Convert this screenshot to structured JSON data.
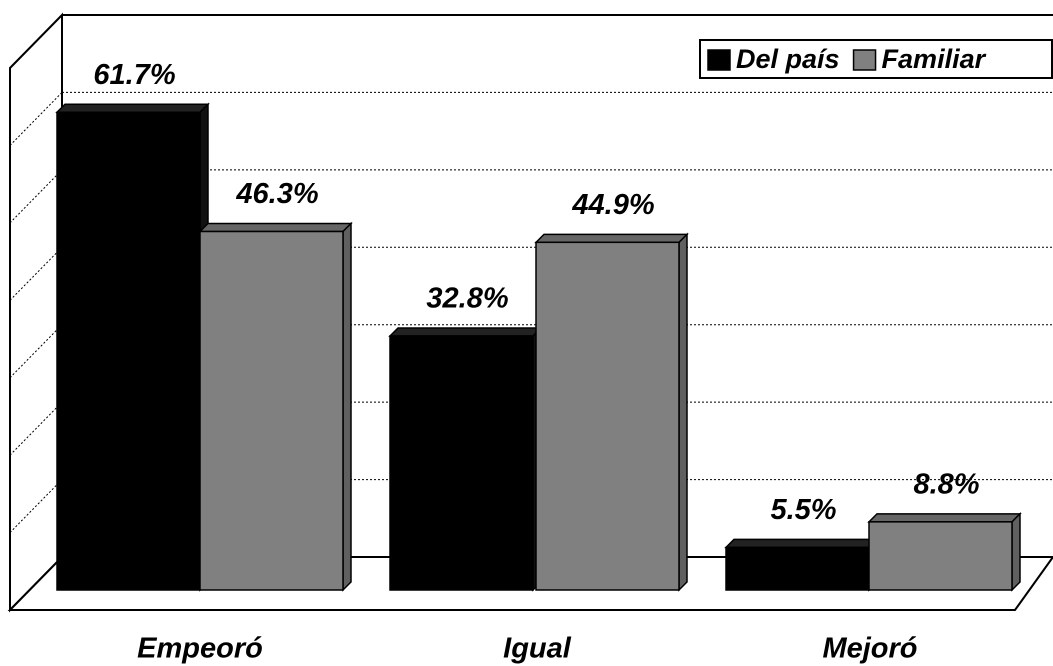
{
  "chart_data": {
    "type": "bar",
    "categories": [
      "Empeoró",
      "Igual",
      "Mejoró"
    ],
    "series": [
      {
        "name": "Del país",
        "color": "#000000",
        "values": [
          61.7,
          32.8,
          5.5
        ],
        "value_labels": [
          "61.7%",
          "32.8%",
          "5.5%"
        ]
      },
      {
        "name": "Familiar",
        "color": "#808080",
        "values": [
          46.3,
          44.9,
          8.8
        ],
        "value_labels": [
          "46.3%",
          "44.9%",
          "8.8%"
        ]
      }
    ],
    "ylim": [
      0,
      70
    ],
    "yticks": [
      0,
      10,
      20,
      30,
      40,
      50,
      60,
      70
    ],
    "grid": true,
    "legend": "top-right"
  }
}
